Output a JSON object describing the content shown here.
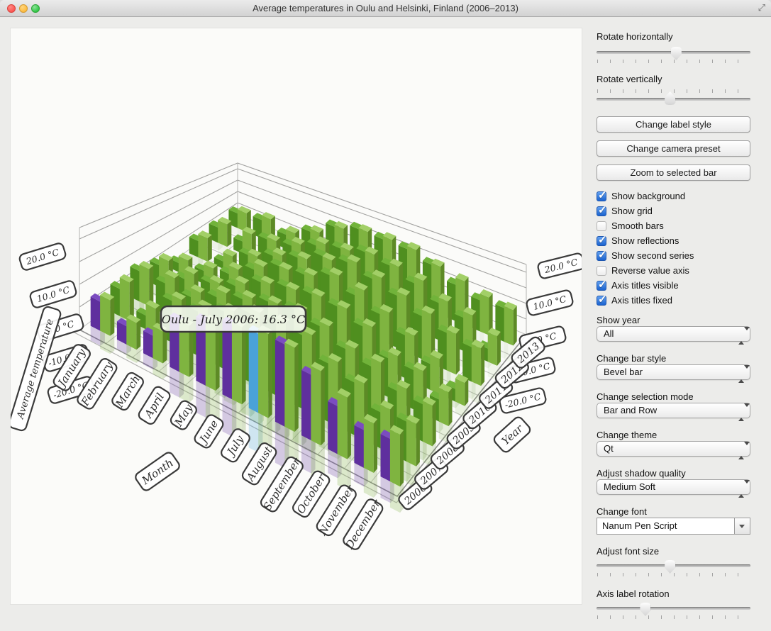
{
  "window": {
    "title": "Average temperatures in Oulu and Helsinki, Finland (2006–2013)",
    "controls": [
      "close",
      "minimize",
      "zoom"
    ],
    "icons": {
      "fullscreen_glyph": "⤢"
    },
    "traffic_colors": {
      "close": "#fc5753",
      "minimize": "#fdbc40",
      "zoom": "#33c748"
    }
  },
  "panel": {
    "sliders": [
      {
        "label": "Rotate horizontally",
        "value_pct": 52,
        "ticks": "below"
      },
      {
        "label": "Rotate vertically",
        "value_pct": 48,
        "ticks": "above"
      },
      {
        "label": "Adjust font size",
        "value_pct": 48,
        "ticks": "below"
      },
      {
        "label": "Axis label rotation",
        "value_pct": 32,
        "ticks": "below"
      }
    ],
    "buttons": [
      {
        "label": "Change label style"
      },
      {
        "label": "Change camera preset"
      },
      {
        "label": "Zoom to selected bar"
      }
    ],
    "checkboxes": [
      {
        "label": "Show background",
        "checked": true
      },
      {
        "label": "Show grid",
        "checked": true
      },
      {
        "label": "Smooth bars",
        "checked": false
      },
      {
        "label": "Show reflections",
        "checked": true
      },
      {
        "label": "Show second series",
        "checked": true
      },
      {
        "label": "Reverse value axis",
        "checked": false
      },
      {
        "label": "Axis titles visible",
        "checked": true
      },
      {
        "label": "Axis titles fixed",
        "checked": true
      }
    ],
    "dropdowns": [
      {
        "label": "Show year",
        "value": "All"
      },
      {
        "label": "Change bar style",
        "value": "Bevel bar"
      },
      {
        "label": "Change selection mode",
        "value": "Bar and Row"
      },
      {
        "label": "Change theme",
        "value": "Qt"
      },
      {
        "label": "Adjust shadow quality",
        "value": "Medium Soft"
      }
    ],
    "font_combo": {
      "label": "Change font",
      "value": "Nanum Pen Script"
    }
  },
  "chart_data": {
    "type": "bar",
    "subtype": "3d-bars",
    "title": "Average temperatures in Oulu and Helsinki, Finland (2006–2013)",
    "months": [
      "January",
      "February",
      "March",
      "April",
      "May",
      "June",
      "July",
      "August",
      "September",
      "October",
      "November",
      "December"
    ],
    "years": [
      "2006",
      "2007",
      "2008",
      "2009",
      "2010",
      "2011",
      "2012",
      "2013"
    ],
    "axis_titles": {
      "column": "Month",
      "row": "Year",
      "value": "Average temperature"
    },
    "value_axis": {
      "min": -20,
      "max": 25,
      "unit": "°C",
      "ticks": [
        "20.0 °C",
        "10.0 °C",
        "0.0 °C",
        "-10.0 °C",
        "-20.0 °C"
      ]
    },
    "series": [
      {
        "name": "Oulu",
        "values": [
          [
            -6.7,
            -11.7,
            -9.7,
            3.3,
            9.2,
            14.0,
            16.3,
            17.8,
            10.2,
            2.1,
            -2.6,
            -0.3
          ],
          [
            -6.8,
            -13.3,
            0.2,
            1.5,
            7.9,
            13.4,
            16.1,
            15.5,
            8.2,
            5.4,
            -2.6,
            -0.8
          ],
          [
            -4.2,
            -4.0,
            -4.6,
            1.9,
            7.3,
            12.5,
            15.0,
            12.8,
            7.6,
            5.1,
            -0.9,
            -1.3
          ],
          [
            -7.8,
            -8.8,
            -4.2,
            0.7,
            9.3,
            13.2,
            15.8,
            15.5,
            11.2,
            0.6,
            0.7,
            -8.4
          ],
          [
            -14.4,
            -12.1,
            -7.0,
            2.3,
            11.0,
            12.6,
            18.8,
            13.8,
            9.4,
            3.9,
            -5.6,
            -13.0
          ],
          [
            -9.0,
            -15.2,
            -3.8,
            2.6,
            8.3,
            15.9,
            18.6,
            14.9,
            11.1,
            5.3,
            1.8,
            -0.2
          ],
          [
            -8.7,
            -11.3,
            -2.3,
            0.4,
            7.5,
            12.2,
            16.4,
            14.1,
            9.2,
            3.1,
            0.3,
            -12.1
          ],
          [
            -7.9,
            -5.3,
            -9.1,
            0.8,
            11.6,
            16.6,
            15.9,
            15.5,
            11.2,
            4.0,
            0.1,
            1.3
          ]
        ]
      },
      {
        "name": "Helsinki",
        "values": [
          [
            -3.7,
            -7.8,
            -5.4,
            3.4,
            10.7,
            15.4,
            18.6,
            18.7,
            14.3,
            8.5,
            2.9,
            4.1
          ],
          [
            -1.2,
            -7.5,
            3.1,
            5.5,
            10.3,
            15.9,
            17.4,
            17.9,
            11.2,
            7.3,
            1.1,
            0.5
          ],
          [
            -0.6,
            1.2,
            0.2,
            6.3,
            10.2,
            13.8,
            16.2,
            15.1,
            10.1,
            9.4,
            2.5,
            0.4
          ],
          [
            -2.9,
            -3.5,
            -1.9,
            4.4,
            10.9,
            13.9,
            16.8,
            16.7,
            13.2,
            4.1,
            2.6,
            -2.3
          ],
          [
            -10.2,
            -8.0,
            -1.9,
            6.6,
            11.3,
            14.5,
            21.0,
            18.8,
            12.6,
            6.1,
            -0.5,
            -7.3
          ],
          [
            -4.4,
            -9.1,
            -2.0,
            5.5,
            9.9,
            15.6,
            20.8,
            17.8,
            13.4,
            8.9,
            3.6,
            1.5
          ],
          [
            -3.5,
            -3.2,
            -0.7,
            4.0,
            11.1,
            13.4,
            17.3,
            15.8,
            13.1,
            6.4,
            4.1,
            -2.3
          ],
          [
            -4.8,
            -1.8,
            -5.0,
            2.9,
            12.8,
            17.2,
            18.0,
            17.3,
            12.2,
            8.7,
            4.3,
            2.4
          ]
        ]
      }
    ],
    "selection": {
      "series": "Oulu",
      "year": "2006",
      "month": "July",
      "value": 16.3,
      "tooltip": "Oulu - July 2006: 16.3 °C"
    },
    "colors": {
      "oulu": {
        "face": "#4f8f1f",
        "side": "#386b13",
        "top": "#71b33a"
      },
      "helsinki": {
        "face": "#7fb440",
        "side": "#5d8a26",
        "top": "#a2cf67"
      },
      "selected_row": {
        "face": "#5f2f9e",
        "side": "#452175",
        "top": "#7b4cc0"
      },
      "selected_bar": {
        "face": "#4aa2d9",
        "side": "#2f7dab",
        "top": "#86c8ec"
      },
      "grid": "#c4c4c2",
      "wall_line": "#a3a3a1",
      "edge": "#8f8f8f",
      "label_border": "#3a3a3a",
      "label_fill": "#ffffff"
    },
    "layout_hints": {
      "grid": true,
      "reflections": true,
      "legend": "none"
    }
  }
}
